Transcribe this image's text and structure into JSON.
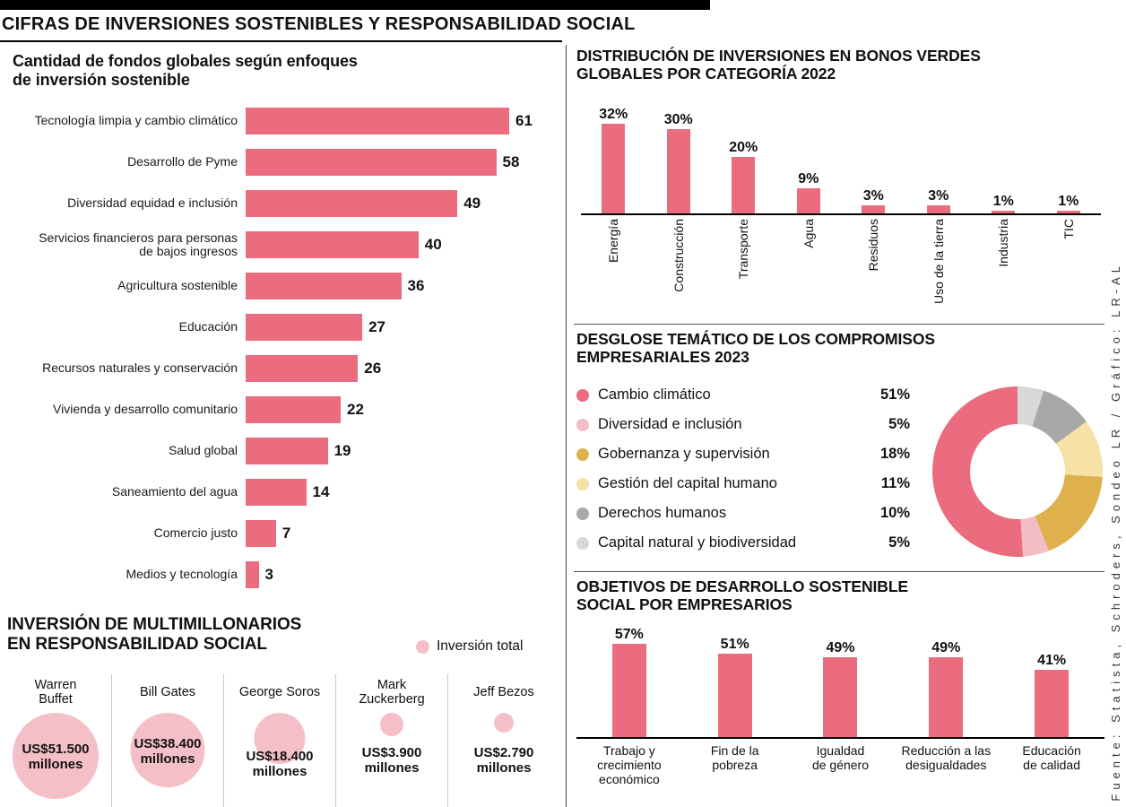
{
  "header": {
    "title": "CIFRAS DE INVERSIONES SOSTENIBLES Y RESPONSABILIDAD SOCIAL"
  },
  "source": "Fuente: Statista, Schroders, Sondeo LR / Gráfico: LR-AL",
  "colors": {
    "accent": "#EA6C7E",
    "bubble": "#F5BFC8",
    "axis": "#000000",
    "divider": "#555555"
  },
  "chart_data": [
    {
      "id": "fondos_globales",
      "type": "bar",
      "orientation": "horizontal",
      "title": "Cantidad de fondos globales según enfoques de inversión sostenible",
      "title_lines": [
        "Cantidad de fondos globales según enfoques",
        "de inversión sostenible"
      ],
      "categories": [
        "Tecnología limpia y cambio climático",
        "Desarrollo de Pyme",
        "Diversidad equidad e inclusión",
        [
          "Servicios financieros para personas",
          "de bajos ingresos"
        ],
        "Agricultura sostenible",
        "Educación",
        "Recursos naturales y conservación",
        "Vivienda y desarrollo comunitario",
        "Salud global",
        "Saneamiento del agua",
        "Comercio justo",
        "Medios y tecnología"
      ],
      "values": [
        61,
        58,
        49,
        40,
        36,
        27,
        26,
        22,
        19,
        14,
        7,
        3
      ],
      "xlim": [
        0,
        61
      ],
      "grid": false
    },
    {
      "id": "multimillonarios",
      "type": "bubble",
      "title": "INVERSIÓN DE MULTIMILLONARIOS EN RESPONSABILIDAD SOCIAL",
      "title_lines": [
        "INVERSIÓN DE MULTIMILLONARIOS",
        "EN RESPONSABILIDAD SOCIAL"
      ],
      "legend": "Inversión total",
      "points": [
        {
          "name": [
            "Warren",
            "Buffet"
          ],
          "amount": "US$51.500 millones",
          "value_musd": 51500
        },
        {
          "name": "Bill Gates",
          "amount": "US$38.400 millones",
          "value_musd": 38400
        },
        {
          "name": "George Soros",
          "amount": "US$18.400 millones",
          "value_musd": 18400
        },
        {
          "name": [
            "Mark",
            "Zuckerberg"
          ],
          "amount": "US$3.900 millones",
          "value_musd": 3900
        },
        {
          "name": "Jeff Bezos",
          "amount": "US$2.790 millones",
          "value_musd": 2790
        }
      ]
    },
    {
      "id": "bonos_verdes",
      "type": "bar",
      "orientation": "vertical",
      "title": "DISTRIBUCIÓN DE INVERSIONES EN BONOS VERDES GLOBALES POR CATEGORÍA 2022",
      "title_lines": [
        "DISTRIBUCIÓN DE INVERSIONES EN BONOS VERDES",
        "GLOBALES POR CATEGORÍA 2022"
      ],
      "categories": [
        "Energía",
        "Construcción",
        "Transporte",
        "Agua",
        "Residuos",
        "Uso de la tierra",
        "Industria",
        "TIC"
      ],
      "values": [
        32,
        30,
        20,
        9,
        3,
        3,
        1,
        1
      ],
      "unit": "%",
      "grid": false
    },
    {
      "id": "compromisos_empresariales",
      "type": "pie",
      "donut": true,
      "title": "DESGLOSE TEMÁTICO DE LOS COMPROMISOS EMPRESARIALES 2023",
      "title_lines": [
        "DESGLOSE TEMÁTICO DE LOS COMPROMISOS",
        "EMPRESARIALES 2023"
      ],
      "legend_position": "left",
      "slices": [
        {
          "label": "Cambio climático",
          "value": 51,
          "color": "#EA6C7E"
        },
        {
          "label": "Diversidad e inclusión",
          "value": 5,
          "color": "#F3BDC5"
        },
        {
          "label": "Gobernanza y supervisión",
          "value": 18,
          "color": "#DFB14D"
        },
        {
          "label": "Gestión del capital humano",
          "value": 11,
          "color": "#F6E2A4"
        },
        {
          "label": "Derechos humanos",
          "value": 10,
          "color": "#A8A8A8"
        },
        {
          "label": "Capital natural y biodiversidad",
          "value": 5,
          "color": "#D8D8D8"
        }
      ],
      "unit": "%"
    },
    {
      "id": "ods_social",
      "type": "bar",
      "orientation": "vertical",
      "title": "OBJETIVOS DE DESARROLLO SOSTENIBLE SOCIAL POR EMPRESARIOS",
      "title_lines": [
        "OBJETIVOS DE DESARROLLO SOSTENIBLE",
        "SOCIAL POR EMPRESARIOS"
      ],
      "categories": [
        [
          "Trabajo y",
          "crecimiento",
          "económico"
        ],
        [
          "Fin de la",
          "pobreza"
        ],
        [
          "Igualdad",
          "de género"
        ],
        [
          "Reducción a las",
          "desigualdades"
        ],
        [
          "Educación",
          "de calidad"
        ]
      ],
      "values": [
        57,
        51,
        49,
        49,
        41
      ],
      "unit": "%",
      "grid": false
    }
  ]
}
